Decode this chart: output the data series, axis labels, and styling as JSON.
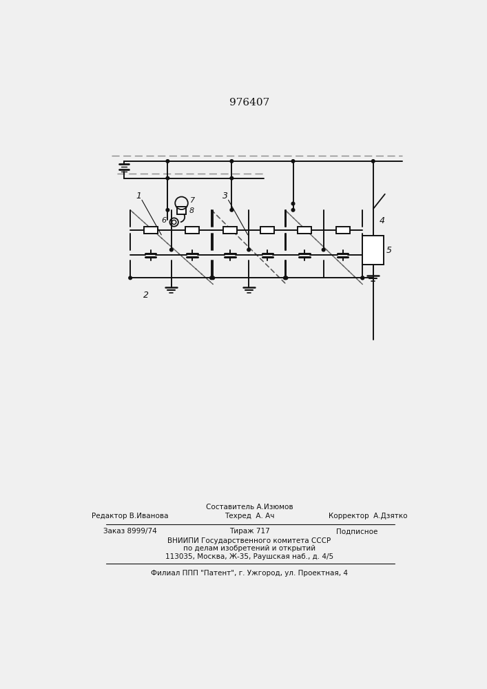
{
  "title": "976407",
  "bg": "#f0f0f0",
  "lc": "#111111",
  "fig_w": 7.07,
  "fig_h": 10.0,
  "dpi": 100,
  "footer": {
    "line1_center": "Составитель А.Изюмов",
    "line2_left": "Редактор В.Иванова",
    "line2_center": "Техред  А. Ач",
    "line2_right": "Корректор  А.Дзятко",
    "line3_left": "Заказ 8999/74",
    "line3_center": "Тираж 717",
    "line3_right": "Подписное",
    "line4": "ВНИИПИ Государственного комитета СССР",
    "line5": "по делам изобретений и открытий",
    "line6": "113035, Москва, Ж-35, Раушская наб., д. 4/5",
    "line7": "Филиал ППП \"Патент\", г. Ужгород, ул. Проектная, 4"
  }
}
